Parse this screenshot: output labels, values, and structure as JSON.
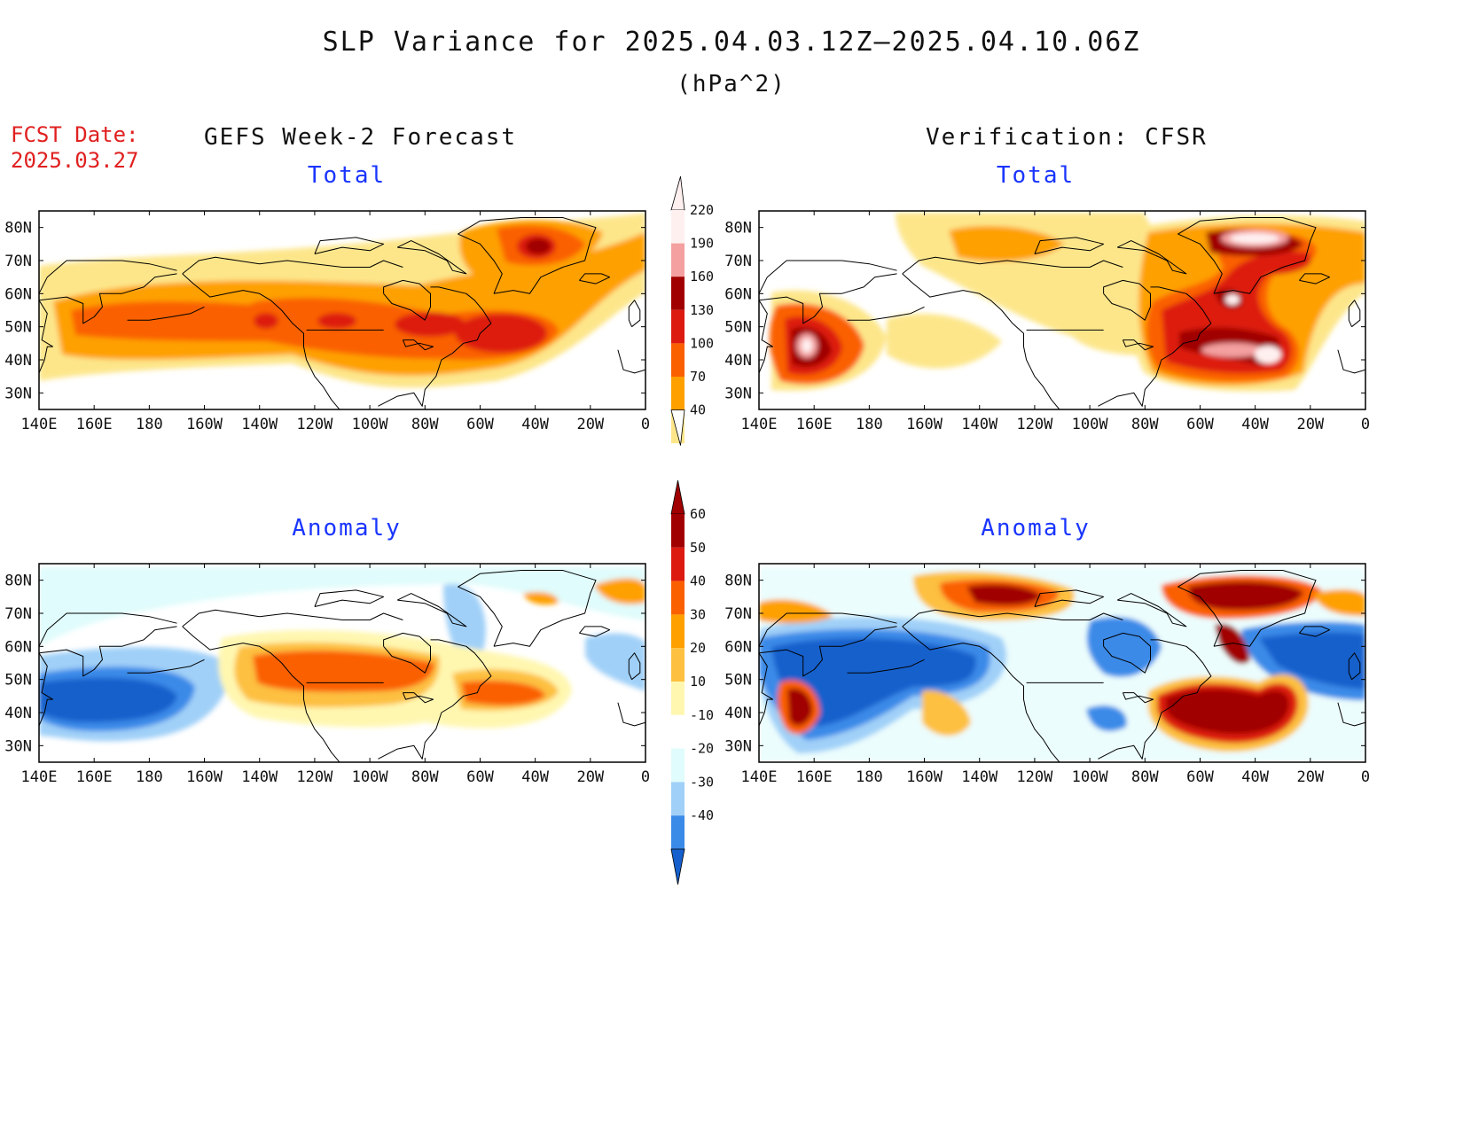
{
  "figure": {
    "title": "SLP Variance for 2025.04.03.12Z–2025.04.10.06Z",
    "units": "(hPa^2)",
    "forecast_date_label": "FCST Date:\n2025.03.27",
    "left_column_title": "GEFS Week-2 Forecast",
    "right_column_title": "Verification: CFSR"
  },
  "panels": [
    {
      "id": "gefs-total",
      "label": "Total",
      "kind": "total"
    },
    {
      "id": "cfsr-total",
      "label": "Total",
      "kind": "total"
    },
    {
      "id": "gefs-anomaly",
      "label": "Anomaly",
      "kind": "anomaly"
    },
    {
      "id": "cfsr-anomaly",
      "label": "Anomaly",
      "kind": "anomaly"
    }
  ],
  "axes": {
    "lon_ticks": [
      "140E",
      "160E",
      "180",
      "160W",
      "140W",
      "120W",
      "100W",
      "80W",
      "60W",
      "40W",
      "20W",
      "0"
    ],
    "lat_ticks": [
      "80N",
      "70N",
      "60N",
      "50N",
      "40N",
      "30N"
    ],
    "lon_range": [
      140,
      360
    ],
    "lat_range": [
      25,
      85
    ]
  },
  "colorbars": {
    "total": {
      "ticks": [
        "220",
        "190",
        "160",
        "130",
        "100",
        "70",
        "40"
      ],
      "colors": [
        "#fff0f0",
        "#f4a0a0",
        "#a00000",
        "#dd1a10",
        "#fa6000",
        "#fea000",
        "#fde68a"
      ]
    },
    "anomaly": {
      "ticks": [
        "60",
        "50",
        "40",
        "30",
        "20",
        "10",
        "-10",
        "-20",
        "-30",
        "-40"
      ],
      "colors": [
        "#a00000",
        "#dd1a10",
        "#fa6000",
        "#fea000",
        "#fdc040",
        "#fff7b0",
        "#ffffff",
        "#e0fcfc",
        "#a0d0f8",
        "#3a8ae8",
        "#1560cc"
      ]
    }
  }
}
